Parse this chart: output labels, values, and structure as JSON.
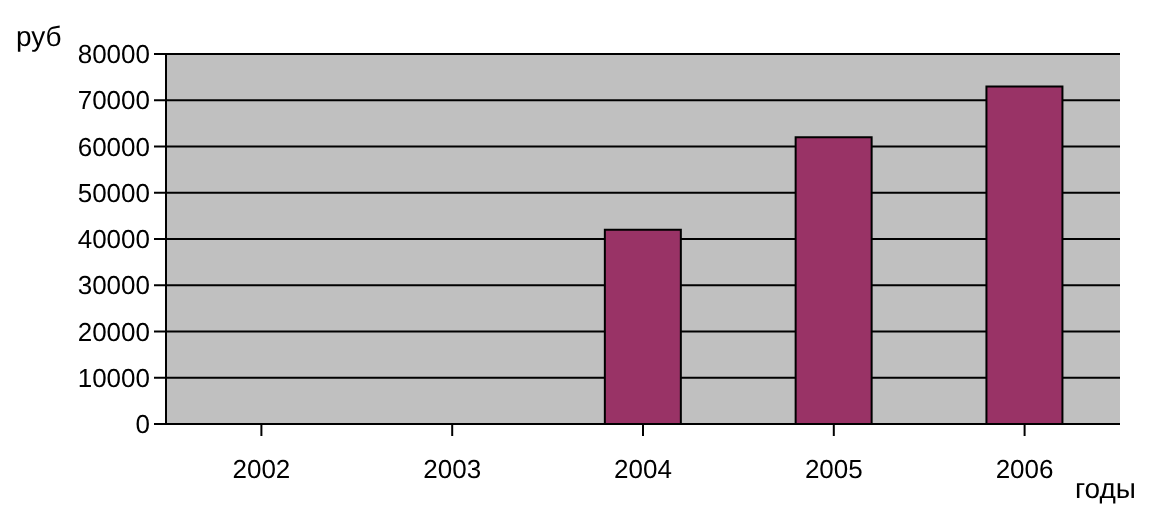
{
  "chart_data": {
    "type": "bar",
    "ylabel": "руб",
    "xlabel": "годы",
    "categories": [
      "2002",
      "2003",
      "2004",
      "2005",
      "2006"
    ],
    "values": [
      0,
      0,
      42000,
      62000,
      73000
    ],
    "color": "#993366",
    "ylim": [
      0,
      80000
    ],
    "yticks": [
      0,
      10000,
      20000,
      30000,
      40000,
      50000,
      60000,
      70000,
      80000
    ],
    "grid": "y",
    "legend": false
  }
}
